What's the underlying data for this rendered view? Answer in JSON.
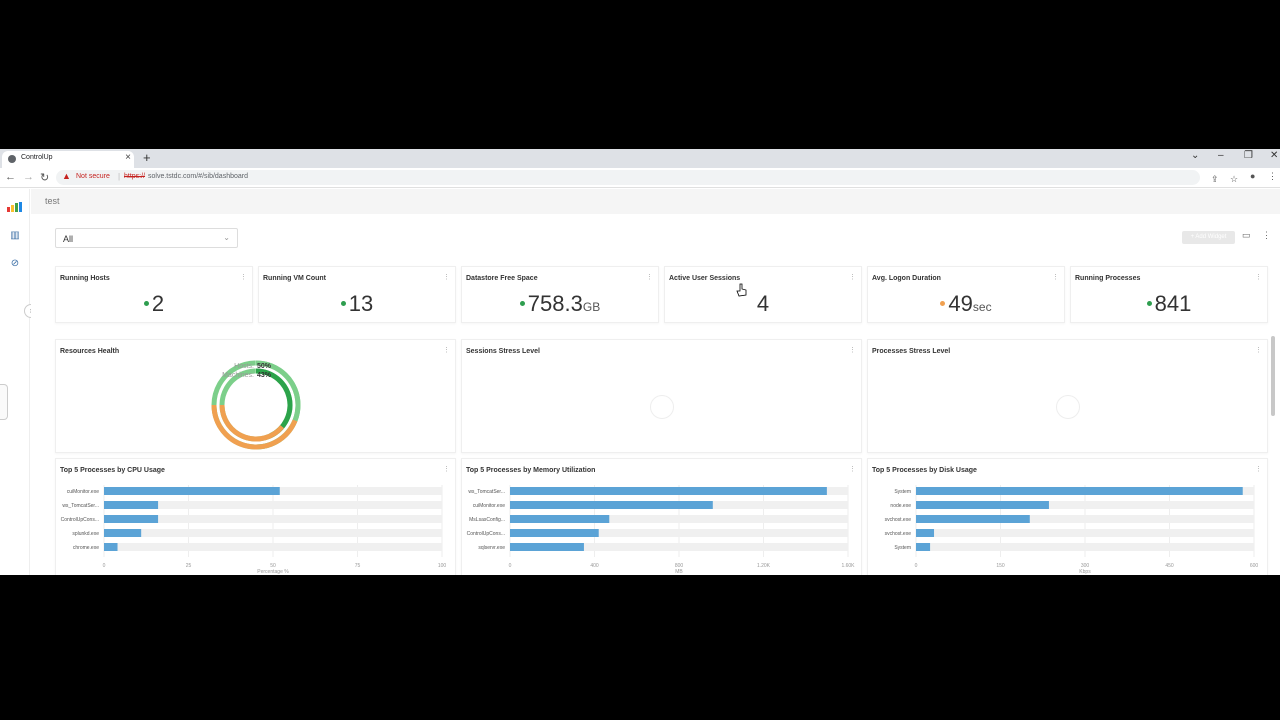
{
  "browser": {
    "tab_title": "ControlUp",
    "tab_close": "×",
    "new_tab": "+",
    "not_secure": "Not secure",
    "url_scheme": "https://",
    "url_rest": "solve.tstdc.com/#/sib/dashboard"
  },
  "topbar": {
    "dashboard_name": "test"
  },
  "filter": {
    "value": "All"
  },
  "toolbar": {
    "add_widget": "+ Add Widget"
  },
  "kpis": [
    {
      "title": "Running Hosts",
      "value": "2",
      "unit": "",
      "dot_color": "#2e9e4f"
    },
    {
      "title": "Running VM Count",
      "value": "13",
      "unit": "",
      "dot_color": "#2e9e4f"
    },
    {
      "title": "Datastore Free Space",
      "value": "758.3",
      "unit": "GB",
      "dot_color": "#2e9e4f"
    },
    {
      "title": "Active User Sessions",
      "value": "4",
      "unit": "",
      "dot_color": ""
    },
    {
      "title": "Avg. Logon Duration",
      "value": "49",
      "unit": "sec",
      "dot_color": "#f0a050"
    },
    {
      "title": "Running Processes",
      "value": "841",
      "unit": "",
      "dot_color": "#2e9e4f"
    }
  ],
  "panels": {
    "resources_health": {
      "title": "Resources Health"
    },
    "sessions_stress": {
      "title": "Sessions Stress Level"
    },
    "processes_stress": {
      "title": "Processes Stress Level"
    }
  },
  "chart_data": [
    {
      "type": "pie",
      "title": "Resources Health",
      "series": [
        {
          "name": "Hosts",
          "value_label": "50%",
          "healthy": 0.5
        },
        {
          "name": "Machines",
          "value_label": "43%",
          "healthy": 0.43
        }
      ],
      "colors": {
        "outer_light": "#7ccf8a",
        "outer_dark": "#2ca34a",
        "inner_orange": "#f0a050"
      }
    },
    {
      "type": "bar",
      "title": "Top 5 Processes by CPU Usage",
      "categories": [
        "cuiMonitor.exe",
        "ws_TomcatSer...",
        "ControlUpCons...",
        "splunkd.exe",
        "chrome.exe"
      ],
      "values": [
        52,
        16,
        16,
        11,
        4
      ],
      "xlim": [
        0,
        100
      ],
      "ticks": [
        "0",
        "25",
        "50",
        "75",
        "100"
      ],
      "xlabel": "Percentage %",
      "color": "#5ba3d6"
    },
    {
      "type": "bar",
      "title": "Top 5 Processes by Memory Utilization",
      "categories": [
        "ws_TomcatSer...",
        "cuiMonitor.exe",
        "MsLsasConfig...",
        "ControlUpCons...",
        "sqlservr.exe"
      ],
      "values": [
        1500,
        960,
        470,
        420,
        350
      ],
      "xlim": [
        0,
        1600
      ],
      "ticks": [
        "0",
        "400",
        "800",
        "1.20K",
        "1.60K"
      ],
      "xlabel": "MB",
      "color": "#5ba3d6"
    },
    {
      "type": "bar",
      "title": "Top 5 Processes by Disk Usage",
      "categories": [
        "System",
        "node.exe",
        "svchost.exe",
        "svchost.exe",
        "System"
      ],
      "values": [
        580,
        236,
        202,
        32,
        25
      ],
      "xlim": [
        0,
        600
      ],
      "ticks": [
        "0",
        "150",
        "300",
        "450",
        "600"
      ],
      "xlabel": "Kbps",
      "color": "#5ba3d6"
    }
  ]
}
